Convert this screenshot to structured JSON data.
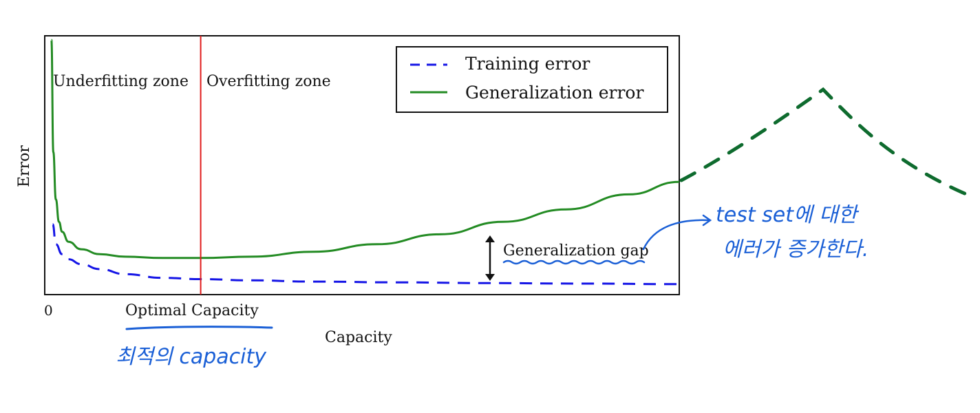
{
  "chart_data": {
    "type": "line",
    "title": "",
    "xlabel": "Capacity",
    "ylabel": "Error",
    "x_ticks": [
      "0"
    ],
    "optimal_label": "Optimal Capacity",
    "optimal_x": 0.24,
    "xlim": [
      0,
      1
    ],
    "ylim": [
      0,
      1
    ],
    "grid": false,
    "legend_position": "top-right",
    "series": [
      {
        "name": "Training error",
        "style": "dashed",
        "color": "#1515e6",
        "x": [
          0.005,
          0.01,
          0.02,
          0.03,
          0.05,
          0.08,
          0.12,
          0.18,
          0.24,
          0.32,
          0.42,
          0.55,
          0.7,
          0.85,
          1.0
        ],
        "y": [
          0.26,
          0.18,
          0.14,
          0.12,
          0.1,
          0.08,
          0.06,
          0.045,
          0.04,
          0.035,
          0.03,
          0.027,
          0.024,
          0.022,
          0.02
        ]
      },
      {
        "name": "Generalization error",
        "style": "solid",
        "color": "#238b23",
        "x": [
          0.003,
          0.006,
          0.01,
          0.015,
          0.02,
          0.03,
          0.05,
          0.08,
          0.12,
          0.18,
          0.24,
          0.32,
          0.42,
          0.52,
          0.62,
          0.72,
          0.82,
          0.92,
          1.0
        ],
        "y": [
          1.0,
          0.55,
          0.36,
          0.27,
          0.23,
          0.19,
          0.16,
          0.14,
          0.13,
          0.125,
          0.125,
          0.13,
          0.15,
          0.18,
          0.22,
          0.27,
          0.32,
          0.38,
          0.43
        ]
      }
    ],
    "annotations": {
      "underfitting": "Underfitting zone",
      "overfitting": "Overfitting zone",
      "gap": "Generalization gap",
      "gap_x": 0.7
    }
  },
  "handwriting": {
    "optimal_note": "최적의 capacity",
    "gap_note_line1": "test set에 대한",
    "gap_note_line2": "에러가 증가한다.",
    "color_blue": "#1a5fd6",
    "color_green": "#0e6b2e"
  }
}
